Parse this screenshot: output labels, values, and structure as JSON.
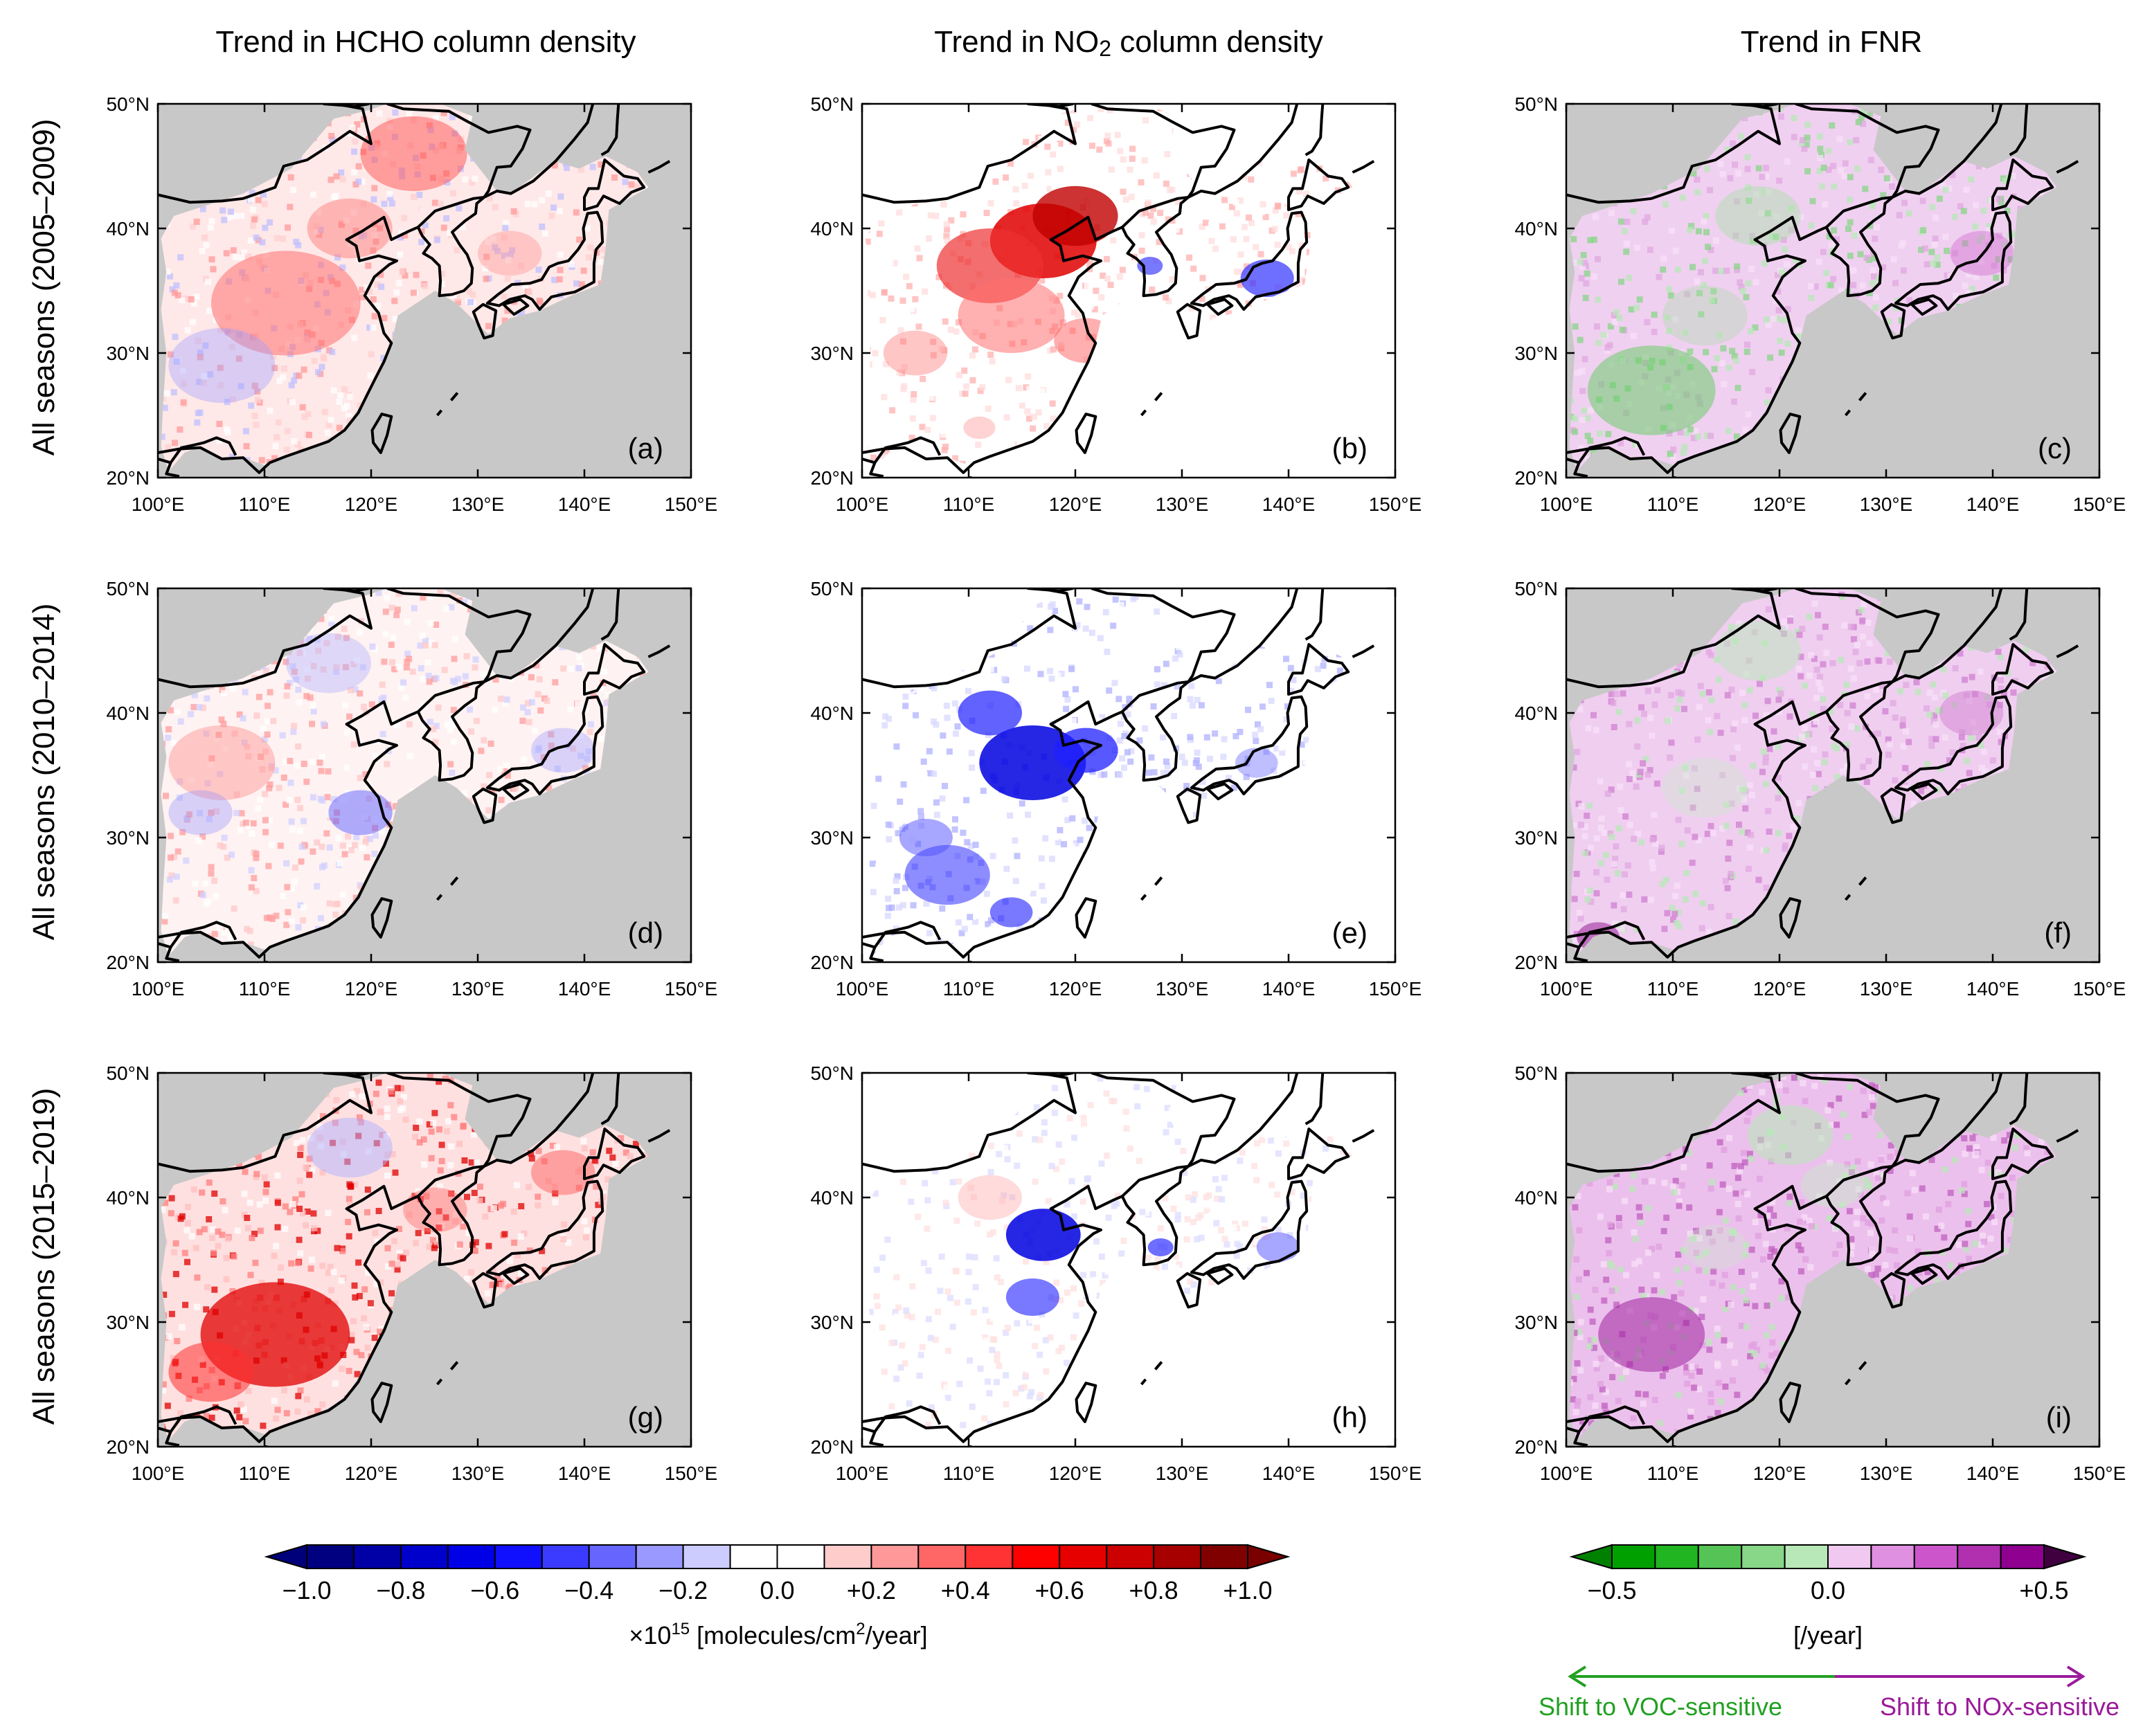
{
  "figure": {
    "column_titles": [
      {
        "prefix": "Trend in HCHO column density",
        "sub": "",
        "suffix": ""
      },
      {
        "prefix": "Trend in NO",
        "sub": "2",
        "suffix": " column density"
      },
      {
        "prefix": "Trend in FNR",
        "sub": "",
        "suffix": ""
      }
    ],
    "row_titles": [
      "All seasons (2005–2009)",
      "All seasons (2010–2014)",
      "All seasons (2015–2019)"
    ],
    "panel_labels": [
      "(a)",
      "(b)",
      "(c)",
      "(d)",
      "(e)",
      "(f)",
      "(g)",
      "(h)",
      "(i)"
    ],
    "lat_ticks": [
      "20°N",
      "30°N",
      "40°N",
      "50°N"
    ],
    "lon_ticks": [
      "100°E",
      "110°E",
      "120°E",
      "130°E",
      "140°E",
      "150°E"
    ],
    "map_extent": {
      "lon": [
        100,
        150
      ],
      "lat": [
        20,
        50
      ]
    },
    "panels": [
      {
        "label": "(a)",
        "column": "HCHO",
        "period": "2005–2009",
        "pattern": "mostly positive, weak negative over south China"
      },
      {
        "label": "(b)",
        "column": "NO2",
        "period": "2005–2009",
        "pattern": "strong positive over North China Plain, negative over Japan"
      },
      {
        "label": "(c)",
        "column": "FNR",
        "period": "2005–2009",
        "pattern": "VOC-sensitive shift over south China"
      },
      {
        "label": "(d)",
        "column": "HCHO",
        "period": "2010–2014",
        "pattern": "mixed, weak"
      },
      {
        "label": "(e)",
        "column": "NO2",
        "period": "2010–2014",
        "pattern": "strong negative over eastern China"
      },
      {
        "label": "(f)",
        "column": "FNR",
        "period": "2010–2014",
        "pattern": "mostly NOx-sensitive shift"
      },
      {
        "label": "(g)",
        "column": "HCHO",
        "period": "2015–2019",
        "pattern": "strong positive over southwest China"
      },
      {
        "label": "(h)",
        "column": "NO2",
        "period": "2015–2019",
        "pattern": "negative over North China Plain"
      },
      {
        "label": "(i)",
        "column": "FNR",
        "period": "2015–2019",
        "pattern": "NOx-sensitive shift over south China"
      }
    ]
  },
  "colorbar_rb": {
    "tick_labels": [
      "−1.0",
      "−0.8",
      "−0.6",
      "−0.4",
      "−0.2",
      "0.0",
      "+0.2",
      "+0.4",
      "+0.6",
      "+0.8",
      "+1.0"
    ],
    "unit_prefix": "×10",
    "unit_exp": "15",
    "unit_mid": " [molecules/cm",
    "unit_exp2": "2",
    "unit_suffix": "/year]",
    "colors": [
      "#000080",
      "#0000a6",
      "#0000cc",
      "#0000e6",
      "#1010ff",
      "#3b3bff",
      "#6666ff",
      "#9999ff",
      "#ccccff",
      "#ffffff",
      "#ffffff",
      "#ffcccc",
      "#ff9999",
      "#ff6666",
      "#ff3333",
      "#ff0000",
      "#e60000",
      "#cc0000",
      "#a60000",
      "#800000"
    ],
    "end_left": "#00007a",
    "end_right": "#7a0000",
    "values": [
      -1.0,
      -0.8,
      -0.6,
      -0.4,
      -0.2,
      0.0,
      0.2,
      0.4,
      0.6,
      0.8,
      1.0
    ]
  },
  "colorbar_gp": {
    "tick_labels": [
      "−0.5",
      "0.0",
      "+0.5"
    ],
    "unit": "[/year]",
    "colors": [
      "#00a000",
      "#22b522",
      "#55c355",
      "#88d688",
      "#b8e8b8",
      "#f0c8f0",
      "#e090e0",
      "#cc55cc",
      "#b030b0",
      "#900090"
    ],
    "end_left": "#008000",
    "end_right": "#400040",
    "values": [
      -0.5,
      0.0,
      0.5
    ],
    "arrow_left_label": "Shift to VOC-sensitive",
    "arrow_right_label": "Shift to NOx-sensitive",
    "arrow_left_color": "#22a022",
    "arrow_right_color": "#9a1a9a"
  },
  "colors": {
    "land_gray": "#c8c8c8",
    "coast": "#000000"
  }
}
